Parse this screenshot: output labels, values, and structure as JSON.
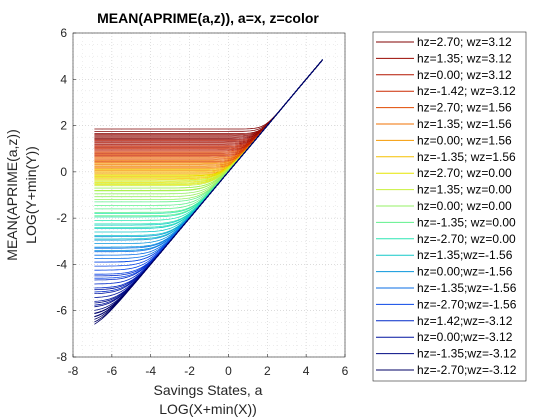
{
  "chart_data": {
    "type": "line",
    "title": "MEAN(APRIME(a,z)), a=x, z=color",
    "xlabel": [
      "Savings States, a",
      "LOG(X+min(X))"
    ],
    "ylabel": [
      "MEAN(APRIME(a,z))",
      "LOG(Y+min(Y))"
    ],
    "xlim": [
      -8,
      6
    ],
    "ylim": [
      -8,
      6
    ],
    "xticks": [
      -8,
      -6,
      -4,
      -2,
      0,
      2,
      4,
      6
    ],
    "yticks": [
      -8,
      -6,
      -4,
      -2,
      0,
      2,
      4,
      6
    ],
    "grid": true,
    "legend_position": "outside-right",
    "x_range": [
      -6.9,
      4.85
    ],
    "converge_point": [
      4.85,
      4.85
    ],
    "lines_per_series": 5,
    "series": [
      {
        "name": "hz=2.70; wz=3.12",
        "color": "#800000",
        "y_start_top": 1.85,
        "y_start_bottom": 1.45
      },
      {
        "name": "hz=1.35; wz=3.12",
        "color": "#9a0800",
        "y_start_top": 1.6,
        "y_start_bottom": 1.2
      },
      {
        "name": "hz=0.00; wz=3.12",
        "color": "#b31700",
        "y_start_top": 1.35,
        "y_start_bottom": 0.95
      },
      {
        "name": "hz=-1.42; wz=3.12",
        "color": "#cc2900",
        "y_start_top": 1.1,
        "y_start_bottom": 0.7
      },
      {
        "name": "hz=2.70; wz=1.56",
        "color": "#e04a00",
        "y_start_top": 0.85,
        "y_start_bottom": 0.45
      },
      {
        "name": "hz=1.35; wz=1.56",
        "color": "#f07000",
        "y_start_top": 0.6,
        "y_start_bottom": 0.2
      },
      {
        "name": "hz=0.00; wz=1.56",
        "color": "#f59a00",
        "y_start_top": 0.35,
        "y_start_bottom": -0.05
      },
      {
        "name": "hz=-1.35; wz=1.56",
        "color": "#f5c000",
        "y_start_top": 0.1,
        "y_start_bottom": -0.3
      },
      {
        "name": "hz=2.70; wz=0.00",
        "color": "#e6e600",
        "y_start_top": -0.15,
        "y_start_bottom": -0.55
      },
      {
        "name": "hz=1.35; wz=0.00",
        "color": "#c8f03c",
        "y_start_top": -0.4,
        "y_start_bottom": -0.8
      },
      {
        "name": "hz=0.00; wz=0.00",
        "color": "#96f064",
        "y_start_top": -0.7,
        "y_start_bottom": -1.2
      },
      {
        "name": "hz=-1.35; wz=0.00",
        "color": "#5ff08c",
        "y_start_top": -1.3,
        "y_start_bottom": -1.9
      },
      {
        "name": "hz=-2.70; wz=0.00",
        "color": "#2de6b4",
        "y_start_top": -1.8,
        "y_start_bottom": -2.4
      },
      {
        "name": "hz=1.35;wz=-1.56",
        "color": "#14c8c8",
        "y_start_top": -2.3,
        "y_start_bottom": -2.9
      },
      {
        "name": "hz=0.00;wz=-1.56",
        "color": "#0a96dc",
        "y_start_top": -2.8,
        "y_start_bottom": -3.4
      },
      {
        "name": "hz=-1.35;wz=-1.56",
        "color": "#0a6ee6",
        "y_start_top": -3.3,
        "y_start_bottom": -3.9
      },
      {
        "name": "hz=-2.70;wz=-1.56",
        "color": "#0a46e6",
        "y_start_top": -3.9,
        "y_start_bottom": -4.6
      },
      {
        "name": "hz=1.42;wz=-3.12",
        "color": "#0028c8",
        "y_start_top": -4.5,
        "y_start_bottom": -5.2
      },
      {
        "name": "hz=0.00;wz=-3.12",
        "color": "#0014a0",
        "y_start_top": -5.1,
        "y_start_bottom": -5.8
      },
      {
        "name": "hz=-1.35;wz=-3.12",
        "color": "#000a82",
        "y_start_top": -5.7,
        "y_start_bottom": -6.4
      },
      {
        "name": "hz=-2.70;wz=-3.12",
        "color": "#000064",
        "y_start_top": -6.2,
        "y_start_bottom": -6.9
      }
    ]
  }
}
